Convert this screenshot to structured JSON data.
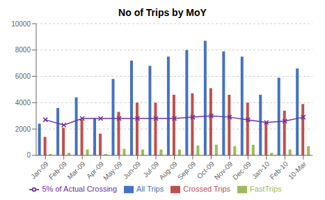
{
  "chart_data": {
    "type": "bar",
    "title": "No of Trips by MoY",
    "categories": [
      "Jan-09",
      "Feb-09",
      "Mar-09",
      "Apr-09",
      "May-09",
      "Jun-09",
      "Jul-09",
      "Aug-09",
      "Sep-09",
      "Oct-09",
      "Nov-09",
      "Dec-09",
      "Jan-10",
      "Feb-10",
      "10-Mar"
    ],
    "series": [
      {
        "name": "All Trips",
        "color": "#4472C4",
        "values": [
          2400,
          3600,
          4400,
          2800,
          5800,
          7200,
          6800,
          7500,
          8000,
          8700,
          7900,
          7500,
          4600,
          5900,
          6600
        ]
      },
      {
        "name": "Crossed Trips",
        "color": "#C0504D",
        "values": [
          1400,
          2100,
          2700,
          1650,
          3300,
          4000,
          4000,
          4600,
          4700,
          5100,
          4600,
          4000,
          2500,
          3400,
          3900
        ]
      },
      {
        "name": "FastTrips",
        "color": "#9BBB59",
        "values": [
          100,
          200,
          450,
          100,
          500,
          450,
          450,
          450,
          750,
          800,
          700,
          800,
          200,
          450,
          700
        ]
      },
      {
        "name": "5% of Actual Crossing",
        "type": "line",
        "color": "#7030A0",
        "marker": "x",
        "values": [
          2700,
          2300,
          2800,
          2800,
          2800,
          2800,
          2800,
          2800,
          2900,
          3000,
          2900,
          2700,
          2500,
          2600,
          2900
        ]
      }
    ],
    "ylim": [
      0,
      10000
    ],
    "yticks": [
      0,
      2000,
      4000,
      6000,
      8000,
      10000
    ],
    "grid": true,
    "legend": "bottom"
  }
}
